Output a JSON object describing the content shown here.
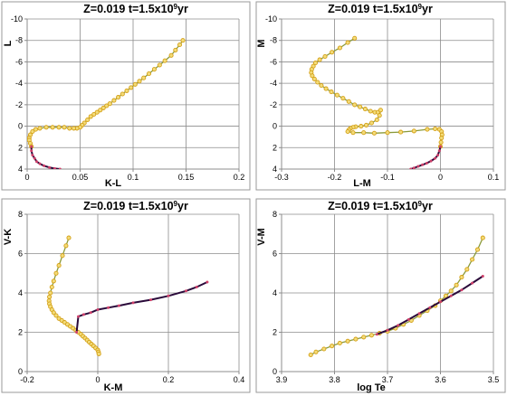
{
  "colors": {
    "giant_line": "#8a9a3a",
    "giant_marker_stroke": "#d4a017",
    "giant_marker_fill": "#f3dc7a",
    "ms_line": "#2a0a3a",
    "ms_marker": "#d0406a"
  },
  "chart_data": [
    {
      "type": "line",
      "title_main": "Z=0.019  t=1.5x10",
      "title_exp": "9",
      "title_tail": "yr",
      "xlabel": "K-L",
      "ylabel": "L",
      "xlim": [
        0,
        0.2
      ],
      "ylim": [
        -10,
        4
      ],
      "y_inverted": true,
      "xticks": [
        0,
        0.05,
        0.1,
        0.15,
        0.2
      ],
      "xtick_labels": [
        "0",
        "0.05",
        "0.1",
        "0.15",
        "0.2"
      ],
      "yticks": [
        -10,
        -8,
        -6,
        -4,
        -2,
        0,
        2,
        4
      ],
      "ytick_labels": [
        "-10",
        "-8",
        "-6",
        "-4",
        "-2",
        "0",
        "2",
        "4"
      ],
      "grid": true,
      "series": [
        {
          "x": [
            0.147,
            0.144,
            0.14,
            0.136,
            0.13,
            0.125,
            0.12,
            0.115,
            0.11,
            0.106,
            0.102,
            0.098,
            0.094,
            0.09,
            0.086,
            0.082,
            0.078,
            0.075,
            0.072,
            0.069,
            0.066,
            0.063,
            0.06,
            0.057,
            0.054,
            0.052,
            0.05,
            0.047,
            0.044,
            0.04,
            0.035,
            0.03,
            0.024,
            0.018,
            0.012,
            0.008,
            0.005,
            0.003,
            0.002,
            0.002,
            0.003,
            0.004
          ],
          "y": [
            -8.0,
            -7.6,
            -7.1,
            -6.6,
            -6.1,
            -5.7,
            -5.3,
            -4.9,
            -4.5,
            -4.2,
            -3.9,
            -3.6,
            -3.3,
            -3.0,
            -2.7,
            -2.4,
            -2.1,
            -1.9,
            -1.7,
            -1.5,
            -1.3,
            -1.1,
            -0.9,
            -0.6,
            -0.3,
            -0.1,
            0.1,
            0.2,
            0.2,
            0.2,
            0.1,
            0.1,
            0.1,
            0.1,
            0.2,
            0.3,
            0.5,
            0.8,
            1.1,
            1.3,
            1.6,
            1.9
          ]
        },
        {
          "x": [
            0.004,
            0.004,
            0.005,
            0.007,
            0.009,
            0.012,
            0.016,
            0.021,
            0.026,
            0.031
          ],
          "y": [
            1.9,
            2.3,
            2.7,
            3.0,
            3.3,
            3.5,
            3.7,
            3.85,
            3.95,
            4.0
          ]
        }
      ]
    },
    {
      "type": "line",
      "title_main": "Z=0.019  t=1.5x10",
      "title_exp": "9",
      "title_tail": "yr",
      "xlabel": "L-M",
      "ylabel": "M",
      "xlim": [
        -0.3,
        0.1
      ],
      "ylim": [
        -10,
        4
      ],
      "y_inverted": true,
      "xticks": [
        -0.3,
        -0.2,
        -0.1,
        0,
        0.1
      ],
      "xtick_labels": [
        "-0.3",
        "-0.2",
        "-0.1",
        "0",
        "0.1"
      ],
      "yticks": [
        -10,
        -8,
        -6,
        -4,
        -2,
        0,
        2,
        4
      ],
      "ytick_labels": [
        "-10",
        "-8",
        "-6",
        "-4",
        "-2",
        "0",
        "2",
        "4"
      ],
      "grid": true,
      "series": [
        {
          "x": [
            -0.162,
            -0.175,
            -0.19,
            -0.205,
            -0.218,
            -0.228,
            -0.236,
            -0.24,
            -0.243,
            -0.244,
            -0.242,
            -0.238,
            -0.232,
            -0.225,
            -0.216,
            -0.206,
            -0.195,
            -0.184,
            -0.173,
            -0.162,
            -0.152,
            -0.142,
            -0.132,
            -0.124,
            -0.118,
            -0.113,
            -0.115,
            -0.12,
            -0.13,
            -0.14,
            -0.15,
            -0.16,
            -0.165,
            -0.17,
            -0.173,
            -0.175,
            -0.165,
            -0.145,
            -0.125,
            -0.1,
            -0.075,
            -0.05,
            -0.025,
            -0.01,
            -0.002,
            0.002,
            0.003,
            0.002,
            0.001,
            0.0
          ],
          "y": [
            -8.2,
            -7.8,
            -7.3,
            -6.9,
            -6.5,
            -6.2,
            -5.9,
            -5.6,
            -5.3,
            -5.0,
            -4.7,
            -4.4,
            -4.1,
            -3.8,
            -3.5,
            -3.2,
            -2.9,
            -2.6,
            -2.3,
            -2.0,
            -1.8,
            -1.6,
            -1.4,
            -1.3,
            -1.3,
            -1.5,
            -1.0,
            -0.6,
            -0.3,
            -0.1,
            0.0,
            0.05,
            0.1,
            0.2,
            0.35,
            0.5,
            0.6,
            0.6,
            0.65,
            0.6,
            0.55,
            0.45,
            0.3,
            0.25,
            0.3,
            0.5,
            0.8,
            1.1,
            1.5,
            1.9
          ]
        },
        {
          "x": [
            0.0,
            -0.002,
            -0.005,
            -0.01,
            -0.018,
            -0.026,
            -0.034,
            -0.042,
            -0.05,
            -0.056
          ],
          "y": [
            1.9,
            2.3,
            2.7,
            3.0,
            3.25,
            3.45,
            3.6,
            3.75,
            3.9,
            4.0
          ]
        }
      ]
    },
    {
      "type": "line",
      "title_main": "Z=0.019  t=1.5x10",
      "title_exp": "9",
      "title_tail": "yr",
      "xlabel": "K-M",
      "ylabel": "V-K",
      "xlim": [
        -0.2,
        0.4
      ],
      "ylim": [
        0,
        8
      ],
      "y_inverted": false,
      "xticks": [
        -0.2,
        0,
        0.2,
        0.4
      ],
      "xtick_labels": [
        "-0.2",
        "0",
        "0.2",
        "0.4"
      ],
      "yticks": [
        0,
        2,
        4,
        6,
        8
      ],
      "ytick_labels": [
        "0",
        "2",
        "4",
        "6",
        "8"
      ],
      "grid": true,
      "series": [
        {
          "x": [
            -0.082,
            -0.09,
            -0.1,
            -0.11,
            -0.118,
            -0.125,
            -0.13,
            -0.134,
            -0.137,
            -0.138,
            -0.137,
            -0.134,
            -0.13,
            -0.125,
            -0.118,
            -0.11,
            -0.102,
            -0.094,
            -0.086,
            -0.078,
            -0.07,
            -0.062,
            -0.055,
            -0.048,
            -0.042,
            -0.036,
            -0.03,
            -0.024,
            -0.018,
            -0.012,
            -0.006,
            0.0,
            0.002,
            0.003
          ],
          "y": [
            6.8,
            6.4,
            5.9,
            5.4,
            5.0,
            4.6,
            4.3,
            4.0,
            3.8,
            3.6,
            3.45,
            3.3,
            3.15,
            3.0,
            2.85,
            2.7,
            2.6,
            2.5,
            2.4,
            2.3,
            2.2,
            2.1,
            2.0,
            1.9,
            1.8,
            1.7,
            1.6,
            1.5,
            1.4,
            1.3,
            1.2,
            1.1,
            1.0,
            0.9
          ]
        },
        {
          "x": [
            -0.06,
            -0.055,
            -0.04,
            -0.02,
            0.0,
            0.03,
            0.06,
            0.1,
            0.15,
            0.2,
            0.25,
            0.28,
            0.31
          ],
          "y": [
            2.0,
            2.8,
            2.9,
            3.0,
            3.15,
            3.25,
            3.35,
            3.5,
            3.65,
            3.85,
            4.1,
            4.3,
            4.55
          ]
        }
      ]
    },
    {
      "type": "line",
      "title_main": "Z=0.019  t=1.5x10",
      "title_exp": "9",
      "title_tail": "yr",
      "xlabel": "log Te",
      "ylabel": "V-M",
      "xlim": [
        3.9,
        3.5
      ],
      "ylim": [
        0,
        8
      ],
      "x_inverted": true,
      "xticks": [
        3.9,
        3.8,
        3.7,
        3.6,
        3.5
      ],
      "xtick_labels": [
        "3.9",
        "3.8",
        "3.7",
        "3.6",
        "3.5"
      ],
      "yticks": [
        0,
        2,
        4,
        6,
        8
      ],
      "ytick_labels": [
        "0",
        "2",
        "4",
        "6",
        "8"
      ],
      "grid": true,
      "series": [
        {
          "x": [
            3.845,
            3.835,
            3.82,
            3.805,
            3.79,
            3.775,
            3.76,
            3.745,
            3.73,
            3.715,
            3.7,
            3.685,
            3.67,
            3.655,
            3.64,
            3.625,
            3.61,
            3.6,
            3.59,
            3.58,
            3.57,
            3.56,
            3.55,
            3.54,
            3.53,
            3.52
          ],
          "y": [
            0.85,
            1.0,
            1.15,
            1.3,
            1.45,
            1.55,
            1.65,
            1.75,
            1.85,
            1.95,
            2.05,
            2.2,
            2.4,
            2.6,
            2.85,
            3.1,
            3.35,
            3.6,
            3.85,
            4.1,
            4.4,
            4.8,
            5.2,
            5.7,
            6.2,
            6.8
          ]
        },
        {
          "x": [
            3.72,
            3.7,
            3.68,
            3.66,
            3.64,
            3.62,
            3.6,
            3.58,
            3.56,
            3.54,
            3.52
          ],
          "y": [
            1.9,
            2.1,
            2.35,
            2.65,
            2.95,
            3.25,
            3.55,
            3.85,
            4.15,
            4.5,
            4.85
          ]
        }
      ]
    }
  ]
}
